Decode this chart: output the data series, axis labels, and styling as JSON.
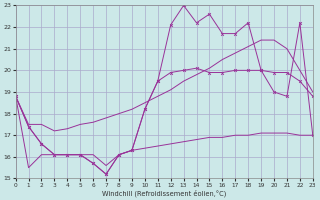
{
  "xlabel": "Windchill (Refroidissement éolien,°C)",
  "background_color": "#cce8e8",
  "grid_color": "#aaaacc",
  "line_color": "#993399",
  "xlim": [
    0,
    23
  ],
  "ylim": [
    15,
    23
  ],
  "yticks": [
    15,
    16,
    17,
    18,
    19,
    20,
    21,
    22,
    23
  ],
  "xticks": [
    0,
    1,
    2,
    3,
    4,
    5,
    6,
    7,
    8,
    9,
    10,
    11,
    12,
    13,
    14,
    15,
    16,
    17,
    18,
    19,
    20,
    21,
    22,
    23
  ],
  "line1_x": [
    0,
    1,
    2,
    3,
    4,
    5,
    6,
    7,
    8,
    9,
    10,
    11,
    12,
    13,
    14,
    15,
    16,
    17,
    18,
    19,
    20,
    21,
    22,
    23
  ],
  "line1_y": [
    18.8,
    17.4,
    16.6,
    16.1,
    16.1,
    16.1,
    15.7,
    15.2,
    16.1,
    16.3,
    18.2,
    19.5,
    22.1,
    23.0,
    22.2,
    22.6,
    21.7,
    21.7,
    22.2,
    20.0,
    19.0,
    18.8,
    22.2,
    17.0
  ],
  "line2_x": [
    0,
    1,
    2,
    3,
    4,
    5,
    6,
    7,
    8,
    9,
    10,
    11,
    12,
    13,
    14,
    15,
    16,
    17,
    18,
    19,
    20,
    21,
    22,
    23
  ],
  "line2_y": [
    18.8,
    17.5,
    17.5,
    17.2,
    17.3,
    17.5,
    17.6,
    17.8,
    18.0,
    18.2,
    18.5,
    18.8,
    19.1,
    19.5,
    19.8,
    20.1,
    20.5,
    20.8,
    21.1,
    21.4,
    21.4,
    21.0,
    20.0,
    19.0
  ],
  "line3_x": [
    0,
    1,
    2,
    3,
    4,
    5,
    6,
    7,
    8,
    9,
    10,
    11,
    12,
    13,
    14,
    15,
    16,
    17,
    18,
    19,
    20,
    21,
    22,
    23
  ],
  "line3_y": [
    18.8,
    17.4,
    16.6,
    16.1,
    16.1,
    16.1,
    15.7,
    15.2,
    16.1,
    16.3,
    18.2,
    19.5,
    19.9,
    20.0,
    20.1,
    19.9,
    19.9,
    20.0,
    20.0,
    20.0,
    19.9,
    19.9,
    19.5,
    18.8
  ],
  "line4_x": [
    0,
    1,
    2,
    3,
    4,
    5,
    6,
    7,
    8,
    9,
    10,
    11,
    12,
    13,
    14,
    15,
    16,
    17,
    18,
    19,
    20,
    21,
    22,
    23
  ],
  "line4_y": [
    18.8,
    15.5,
    16.1,
    16.1,
    16.1,
    16.1,
    16.1,
    15.6,
    16.1,
    16.3,
    16.4,
    16.5,
    16.6,
    16.7,
    16.8,
    16.9,
    16.9,
    17.0,
    17.0,
    17.1,
    17.1,
    17.1,
    17.0,
    17.0
  ]
}
